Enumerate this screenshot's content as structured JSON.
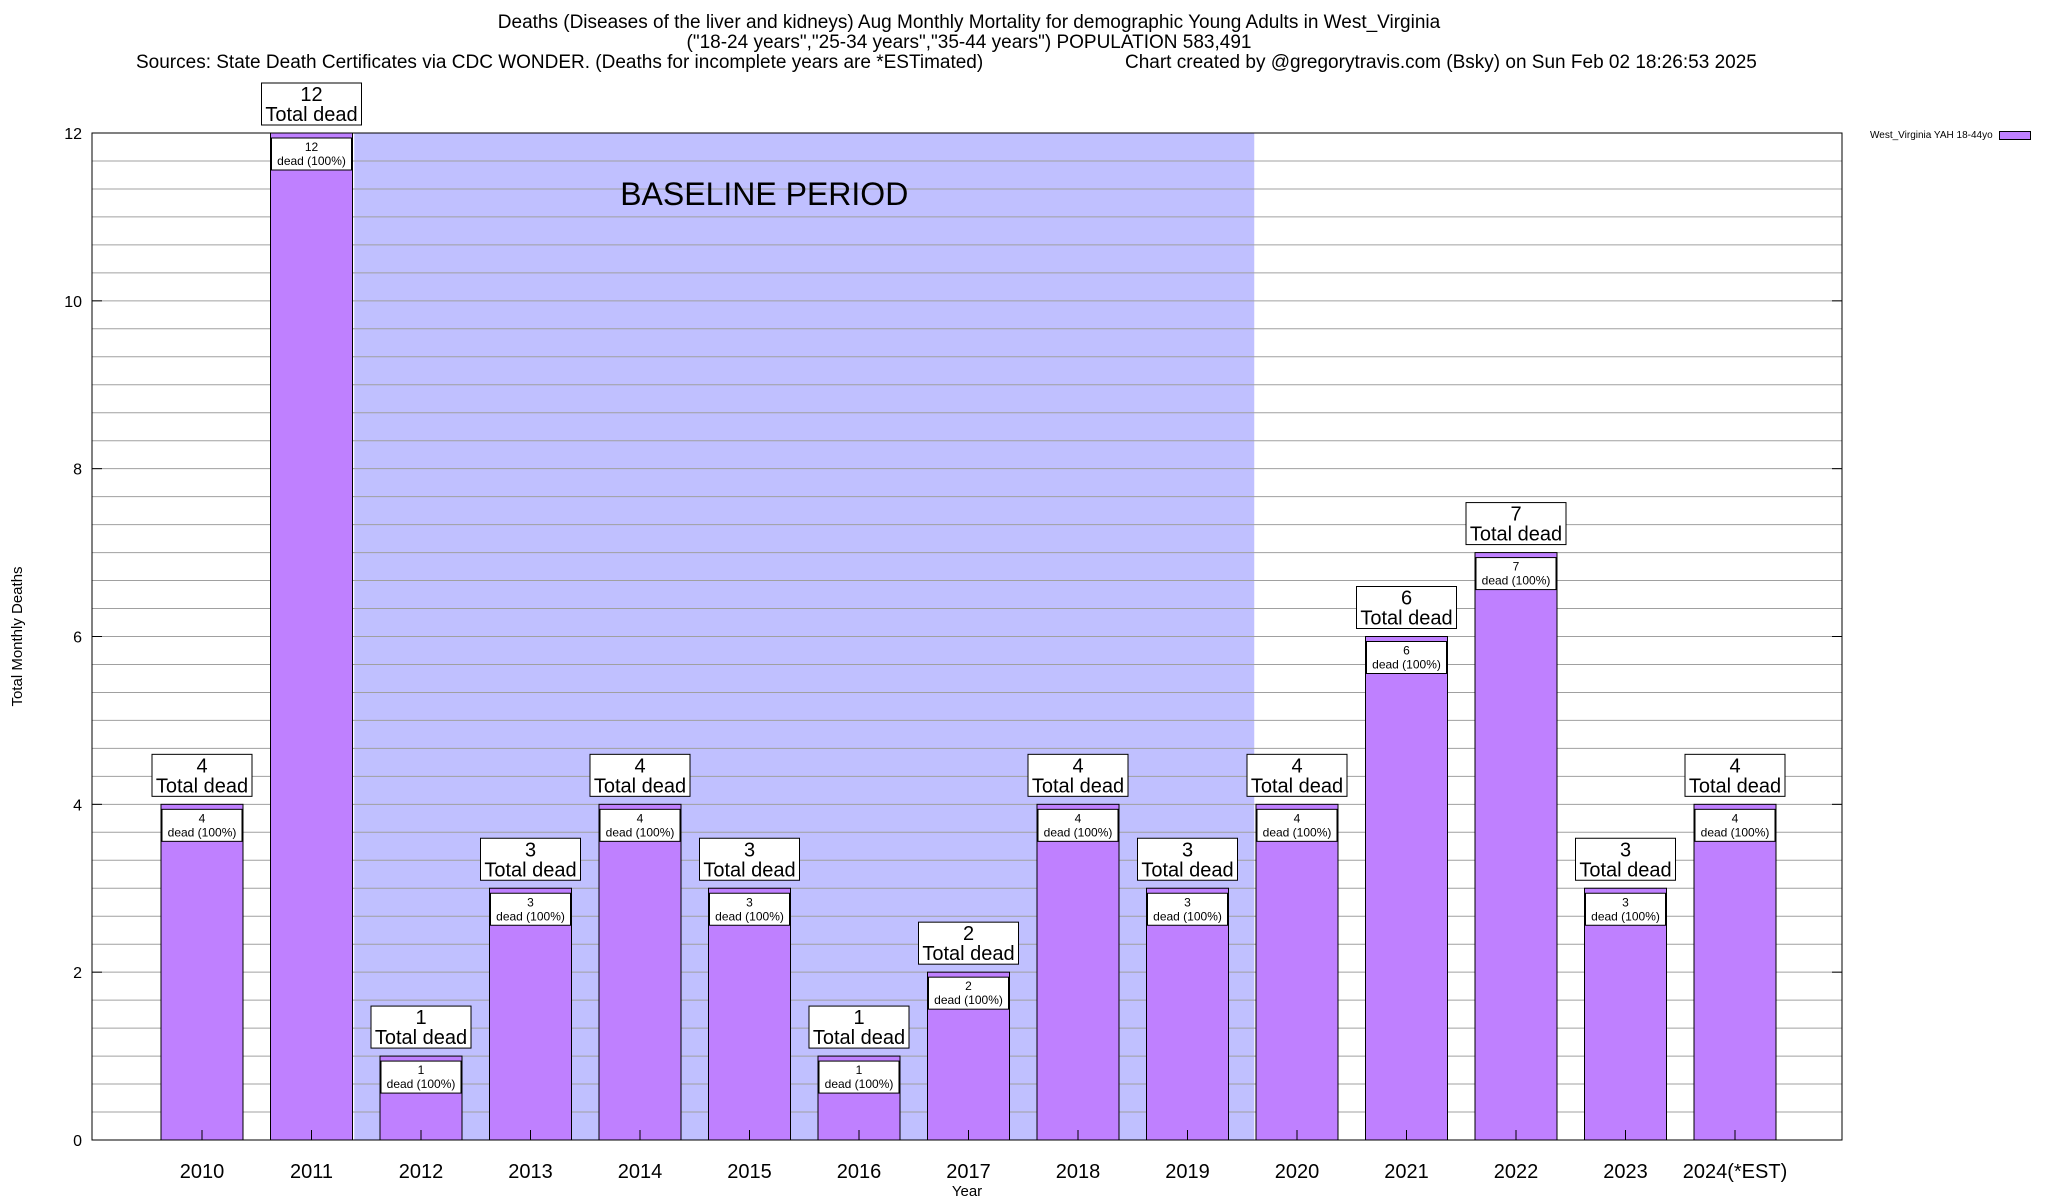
{
  "title": {
    "line1": "Deaths (Diseases of the liver and kidneys) Aug Monthly Mortality for demographic Young Adults in West_Virginia",
    "line2": "(\"18-24 years\",\"25-34 years\",\"35-44 years\") POPULATION 583,491",
    "sources": "Sources: State Death Certificates via CDC WONDER. (Deaths for incomplete years are *ESTimated)",
    "credit": "Chart created by @gregorytravis.com (Bsky) on Sun Feb 02 18:26:53 2025"
  },
  "legend": {
    "label": "West_Virginia YAH 18-44yo"
  },
  "colors": {
    "bar": "#bf80ff",
    "baseline": "#c0c0ff",
    "grid": "#a0a0a0"
  },
  "chart_data": {
    "type": "bar",
    "categories": [
      "2010",
      "2011",
      "2012",
      "2013",
      "2014",
      "2015",
      "2016",
      "2017",
      "2018",
      "2019",
      "2020",
      "2021",
      "2022",
      "2023",
      "2024(*EST)"
    ],
    "series": [
      {
        "name": "West_Virginia YAH 18-44yo",
        "values": [
          4,
          12,
          1,
          3,
          4,
          3,
          1,
          2,
          4,
          3,
          4,
          6,
          7,
          3,
          4
        ]
      }
    ],
    "total_label": "Total dead",
    "inner_label_suffix": "dead (100%)",
    "xlabel": "Year",
    "ylabel": "Total Monthly Deaths",
    "ylim": [
      0,
      12
    ],
    "yticks": [
      0,
      2,
      4,
      6,
      8,
      10,
      12
    ],
    "baseline_region": {
      "label": "BASELINE PERIOD",
      "from": "2012",
      "to": "2019"
    },
    "grid": true,
    "legend_position": "top-right"
  }
}
